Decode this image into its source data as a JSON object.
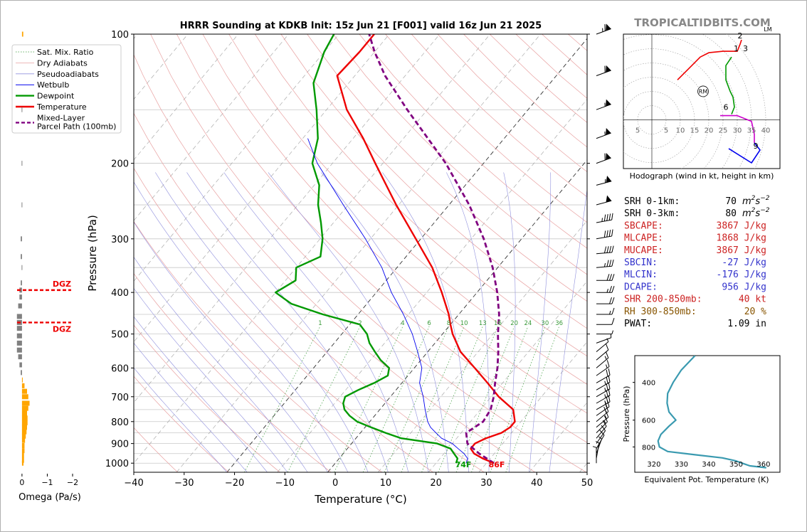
{
  "title": "HRRR Sounding at KDKB Init: 15z Jun 21 [F001] valid 16z Jun 21 2025",
  "watermark": "TROPICALTIDBITS.COM",
  "colors": {
    "temperature": "#ee0000",
    "dewpoint": "#009900",
    "wetbulb": "#0000ee",
    "parcel": "#800080",
    "dgz": "#ee0000",
    "omega_up": "#ffa500",
    "omega_down": "#808080",
    "theta_e": "#3a9ab0",
    "red_text": "#cc2222",
    "blue_text": "#3333cc",
    "brown_text": "#885500"
  },
  "legend": {
    "items": [
      {
        "label": "Sat. Mix. Ratio",
        "style": "mixratio"
      },
      {
        "label": "Dry Adiabats",
        "style": "dry"
      },
      {
        "label": "Pseudoadiabats",
        "style": "moist"
      },
      {
        "label": "Wetbulb",
        "style": "wetbulb"
      },
      {
        "label": "Dewpoint",
        "style": "dewpoint"
      },
      {
        "label": "Temperature",
        "style": "temperature"
      },
      {
        "label": "Mixed-Layer",
        "style": "parcel",
        "label2": "Parcel Path (100mb)"
      }
    ]
  },
  "omega": {
    "xlabel": "Omega (Pa/s)",
    "xticks": [
      "0",
      "−1",
      "−2"
    ],
    "dgz_label": "DGZ"
  },
  "hodograph": {
    "caption": "Hodograph (wind in kt, height in km)",
    "lm_label": "LM",
    "rm_label": "RM",
    "ring_labels": [
      "5",
      "5",
      "10",
      "15",
      "20",
      "25",
      "30",
      "35",
      "40"
    ],
    "height_labels": [
      "2",
      "1",
      "3",
      "6",
      "9"
    ]
  },
  "indices": [
    {
      "label": "SRH 0-1km:",
      "value": "70",
      "unit": "m2s-2",
      "color": "black"
    },
    {
      "label": "SRH 0-3km:",
      "value": "80",
      "unit": "m2s-2",
      "color": "black"
    },
    {
      "label": "SBCAPE:",
      "value": "3867 J/kg",
      "color": "red"
    },
    {
      "label": "MLCAPE:",
      "value": "1868 J/kg",
      "color": "red"
    },
    {
      "label": "MUCAPE:",
      "value": "3867 J/kg",
      "color": "red"
    },
    {
      "label": "SBCIN:",
      "value": "-27 J/kg",
      "color": "blue"
    },
    {
      "label": "MLCIN:",
      "value": "-176 J/kg",
      "color": "blue"
    },
    {
      "label": "DCAPE:",
      "value": "956 J/kg",
      "color": "blue"
    },
    {
      "label": "SHR 200-850mb:",
      "value": "40 kt",
      "color": "red"
    },
    {
      "label": "RH 300-850mb:",
      "value": "20 %",
      "color": "brown"
    },
    {
      "label": "PWAT:",
      "value": "1.09 in",
      "color": "black"
    }
  ],
  "chart_data": [
    {
      "type": "line",
      "title": "HRRR Sounding at KDKB Init: 15z Jun 21 [F001] valid 16z Jun 21 2025",
      "xlabel": "Temperature (°C)",
      "ylabel": "Pressure (hPa)",
      "xlim": [
        -40,
        50
      ],
      "ylim": [
        1050,
        100
      ],
      "y_scale": "log",
      "skew": true,
      "xticks": [
        -40,
        -30,
        -20,
        -10,
        0,
        10,
        20,
        30,
        40,
        50
      ],
      "yticks": [
        100,
        200,
        300,
        400,
        500,
        600,
        700,
        800,
        900,
        1000
      ],
      "mixing_ratio_labels": [
        "1",
        "2",
        "4",
        "6",
        "8",
        "10",
        "13",
        "16",
        "20",
        "24",
        "30",
        "36"
      ],
      "surface_labels": {
        "dewpoint": "74F",
        "temperature": "86F"
      },
      "series": [
        {
          "name": "Temperature",
          "points": [
            [
              1000,
              31.5
            ],
            [
              975,
              28.5
            ],
            [
              950,
              26
            ],
            [
              925,
              24.5
            ],
            [
              900,
              24.5
            ],
            [
              875,
              25.8
            ],
            [
              850,
              28
            ],
            [
              825,
              28.8
            ],
            [
              800,
              28.8
            ],
            [
              750,
              26.5
            ],
            [
              700,
              21.5
            ],
            [
              650,
              17
            ],
            [
              600,
              12
            ],
            [
              550,
              6.5
            ],
            [
              500,
              2
            ],
            [
              475,
              0
            ],
            [
              450,
              -2
            ],
            [
              400,
              -7
            ],
            [
              350,
              -13
            ],
            [
              300,
              -21
            ],
            [
              250,
              -30.5
            ],
            [
              200,
              -41.5
            ],
            [
              175,
              -48
            ],
            [
              150,
              -56
            ],
            [
              125,
              -63.5
            ],
            [
              110,
              -63
            ],
            [
              100,
              -63
            ]
          ]
        },
        {
          "name": "Dewpoint",
          "points": [
            [
              1000,
              24
            ],
            [
              975,
              23.5
            ],
            [
              950,
              22
            ],
            [
              925,
              20.5
            ],
            [
              900,
              17
            ],
            [
              875,
              9
            ],
            [
              850,
              5
            ],
            [
              825,
              1.2
            ],
            [
              800,
              -2.5
            ],
            [
              775,
              -5
            ],
            [
              750,
              -7
            ],
            [
              725,
              -8.3
            ],
            [
              700,
              -9
            ],
            [
              675,
              -7.5
            ],
            [
              650,
              -5.5
            ],
            [
              625,
              -4
            ],
            [
              600,
              -5
            ],
            [
              575,
              -8
            ],
            [
              550,
              -10.5
            ],
            [
              525,
              -13
            ],
            [
              500,
              -15
            ],
            [
              475,
              -18
            ],
            [
              450,
              -27
            ],
            [
              425,
              -35
            ],
            [
              400,
              -40
            ],
            [
              375,
              -38
            ],
            [
              350,
              -40
            ],
            [
              330,
              -37
            ],
            [
              300,
              -39.5
            ],
            [
              275,
              -42.5
            ],
            [
              250,
              -46
            ],
            [
              225,
              -49
            ],
            [
              200,
              -54
            ],
            [
              175,
              -57
            ],
            [
              150,
              -62
            ],
            [
              130,
              -67
            ],
            [
              110,
              -70
            ],
            [
              100,
              -71
            ]
          ]
        },
        {
          "name": "Wetbulb",
          "points": [
            [
              1000,
              26
            ],
            [
              975,
              25.5
            ],
            [
              950,
              24
            ],
            [
              925,
              22
            ],
            [
              900,
              20
            ],
            [
              875,
              17
            ],
            [
              850,
              15
            ],
            [
              825,
              13
            ],
            [
              800,
              11.5
            ],
            [
              750,
              9
            ],
            [
              700,
              6.5
            ],
            [
              650,
              3.5
            ],
            [
              600,
              1.5
            ],
            [
              550,
              -2
            ],
            [
              500,
              -6
            ],
            [
              450,
              -11
            ],
            [
              400,
              -17
            ],
            [
              350,
              -23
            ],
            [
              300,
              -31
            ],
            [
              250,
              -41
            ],
            [
              200,
              -53
            ],
            [
              175,
              -59
            ]
          ]
        },
        {
          "name": "Mixed-Layer Parcel Path (100mb)",
          "points": [
            [
              1000,
              31.5
            ],
            [
              950,
              27
            ],
            [
              900,
              23
            ],
            [
              850,
              21
            ],
            [
              800,
              22.5
            ],
            [
              750,
              22
            ],
            [
              700,
              20.5
            ],
            [
              650,
              18.5
            ],
            [
              600,
              16.5
            ],
            [
              550,
              14
            ],
            [
              500,
              11
            ],
            [
              450,
              8
            ],
            [
              400,
              4
            ],
            [
              350,
              -1
            ],
            [
              300,
              -7.5
            ],
            [
              250,
              -16
            ],
            [
              200,
              -27.5
            ],
            [
              150,
              -44
            ],
            [
              125,
              -54
            ],
            [
              110,
              -60
            ],
            [
              100,
              -64
            ]
          ]
        }
      ]
    },
    {
      "type": "bar",
      "title": "",
      "xlabel": "Omega (Pa/s)",
      "xlim": [
        0.25,
        -2.0
      ],
      "y_scale": "log",
      "ylim": [
        1050,
        100
      ],
      "dgz_pressures": [
        395,
        470
      ],
      "bars": [
        [
          100,
          -0.05
        ],
        [
          150,
          0.0
        ],
        [
          200,
          0.0
        ],
        [
          250,
          0.0
        ],
        [
          300,
          0.05
        ],
        [
          330,
          0.05
        ],
        [
          350,
          0.0
        ],
        [
          380,
          0.05
        ],
        [
          395,
          0.1
        ],
        [
          410,
          0.1
        ],
        [
          430,
          0.15
        ],
        [
          455,
          0.2
        ],
        [
          470,
          0.2
        ],
        [
          485,
          0.2
        ],
        [
          505,
          0.2
        ],
        [
          525,
          0.2
        ],
        [
          545,
          0.2
        ],
        [
          565,
          0.15
        ],
        [
          590,
          0.1
        ],
        [
          615,
          0.05
        ],
        [
          640,
          -0.03
        ],
        [
          660,
          -0.1
        ],
        [
          680,
          -0.2
        ],
        [
          700,
          -0.25
        ],
        [
          725,
          -0.3
        ],
        [
          745,
          -0.25
        ],
        [
          765,
          -0.2
        ],
        [
          785,
          -0.22
        ],
        [
          805,
          -0.22
        ],
        [
          825,
          -0.2
        ],
        [
          845,
          -0.18
        ],
        [
          865,
          -0.15
        ],
        [
          885,
          -0.12
        ],
        [
          910,
          -0.1
        ],
        [
          935,
          -0.1
        ],
        [
          960,
          -0.08
        ],
        [
          985,
          -0.08
        ],
        [
          1000,
          -0.06
        ]
      ]
    },
    {
      "type": "line",
      "title": "",
      "xlabel": "Equivalent Pot. Temperature (K)",
      "ylabel": "Pressure (hPa)",
      "xlim": [
        313,
        366
      ],
      "ylim": [
        1050,
        300
      ],
      "xticks": [
        320,
        330,
        340,
        350,
        360
      ],
      "yticks": [
        400,
        600,
        800
      ],
      "series": [
        {
          "name": "Equivalent Pot. Temperature",
          "points": [
            [
              300,
              335
            ],
            [
              350,
              330
            ],
            [
              400,
              327
            ],
            [
              450,
              325
            ],
            [
              500,
              324.8
            ],
            [
              550,
              325.5
            ],
            [
              600,
              328
            ],
            [
              640,
              325.5
            ],
            [
              700,
              322.5
            ],
            [
              750,
              321.5
            ],
            [
              800,
              322
            ],
            [
              840,
              325
            ],
            [
              870,
              335
            ],
            [
              900,
              345
            ],
            [
              930,
              350
            ],
            [
              960,
              353
            ],
            [
              980,
              355
            ],
            [
              1000,
              361
            ]
          ]
        }
      ]
    },
    {
      "type": "line",
      "title": "",
      "xlabel": "",
      "ylabel": "",
      "xlim": [
        -10,
        45
      ],
      "ylim": [
        -17,
        30
      ],
      "rings_kt": [
        5,
        10,
        15,
        20,
        25,
        30,
        35,
        40
      ],
      "storm_motion": {
        "RM": [
          18,
          10
        ],
        "LM": [
          35,
          31
        ]
      },
      "series": [
        {
          "name": "0-3 km",
          "points": [
            [
              9,
              14
            ],
            [
              13,
              18
            ],
            [
              17,
              22
            ],
            [
              20,
              23.5
            ],
            [
              25,
              24
            ],
            [
              30,
              24
            ],
            [
              31,
              26.5
            ],
            [
              31.5,
              28
            ]
          ]
        },
        {
          "name": "3-6 km",
          "points": [
            [
              28,
              22
            ],
            [
              26,
              19
            ],
            [
              26,
              14
            ],
            [
              27.5,
              10
            ],
            [
              28.5,
              8
            ],
            [
              29,
              4.5
            ],
            [
              28,
              2
            ]
          ]
        },
        {
          "name": "6-9 km",
          "points": [
            [
              24,
              1.5
            ],
            [
              30,
              1.5
            ],
            [
              35,
              -0.5
            ],
            [
              36,
              -5
            ],
            [
              36,
              -8
            ]
          ]
        },
        {
          "name": "9+ km",
          "points": [
            [
              36,
              -8
            ],
            [
              38,
              -10.5
            ],
            [
              35,
              -15
            ],
            [
              27,
              -10
            ]
          ]
        }
      ]
    },
    {
      "type": "scatter",
      "title": "Wind barbs",
      "barbs": [
        [
          100,
          65,
          250
        ],
        [
          125,
          60,
          250
        ],
        [
          150,
          55,
          250
        ],
        [
          175,
          55,
          250
        ],
        [
          200,
          60,
          250
        ],
        [
          225,
          55,
          255
        ],
        [
          250,
          50,
          255
        ],
        [
          275,
          45,
          260
        ],
        [
          300,
          40,
          260
        ],
        [
          325,
          40,
          265
        ],
        [
          350,
          35,
          265
        ],
        [
          375,
          30,
          270
        ],
        [
          400,
          25,
          270
        ],
        [
          425,
          20,
          270
        ],
        [
          450,
          15,
          270
        ],
        [
          475,
          10,
          270
        ],
        [
          500,
          5,
          270
        ],
        [
          525,
          5,
          250
        ],
        [
          550,
          5,
          230
        ],
        [
          575,
          10,
          230
        ],
        [
          600,
          15,
          230
        ],
        [
          625,
          15,
          235
        ],
        [
          650,
          20,
          240
        ],
        [
          675,
          25,
          240
        ],
        [
          700,
          25,
          240
        ],
        [
          725,
          25,
          240
        ],
        [
          750,
          25,
          240
        ],
        [
          775,
          20,
          235
        ],
        [
          800,
          20,
          230
        ],
        [
          825,
          15,
          230
        ],
        [
          850,
          15,
          225
        ],
        [
          875,
          10,
          220
        ],
        [
          900,
          10,
          215
        ],
        [
          925,
          10,
          210
        ],
        [
          950,
          5,
          200
        ],
        [
          975,
          5,
          190
        ],
        [
          1000,
          5,
          180
        ]
      ]
    }
  ]
}
